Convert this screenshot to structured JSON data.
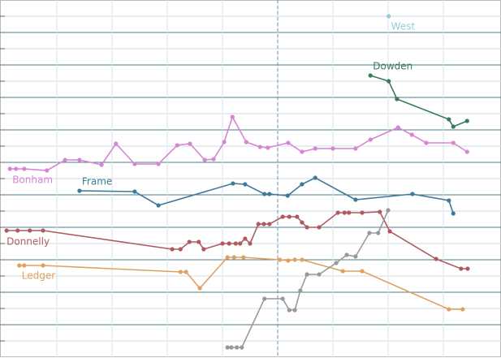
{
  "chart_data": {
    "type": "line",
    "xlim": [
      0,
      9
    ],
    "ylim": [
      0,
      22
    ],
    "xticks": [
      1,
      2,
      3,
      4,
      5,
      6,
      7,
      8
    ],
    "yticks": [
      1,
      2,
      3,
      4,
      5,
      6,
      7,
      8,
      9,
      10,
      11,
      12,
      13,
      14,
      15,
      16,
      17,
      18,
      19,
      20,
      21
    ],
    "grid": true,
    "vline": 5,
    "series": [
      {
        "name": "West",
        "color": "#8ecfd8",
        "x": [
          7.01
        ],
        "values": [
          21
        ]
      },
      {
        "name": "Dowden",
        "color": "#3a7a5a",
        "x": [
          6.68,
          7.01,
          7.16,
          8.1,
          8.18,
          8.43
        ],
        "values": [
          17.35,
          17.0,
          15.9,
          14.65,
          14.2,
          14.55
        ]
      },
      {
        "name": "Bonham",
        "color": "#d884d4",
        "x": [
          0.15,
          0.26,
          0.41,
          0.82,
          1.15,
          1.41,
          1.81,
          2.07,
          2.41,
          2.84,
          3.18,
          3.41,
          3.68,
          3.84,
          4.03,
          4.18,
          4.43,
          4.68,
          4.82,
          5.19,
          5.44,
          5.68,
          6.0,
          6.41,
          6.68,
          7.18,
          7.43,
          7.69,
          8.18,
          8.43
        ],
        "values": [
          11.6,
          11.6,
          11.6,
          11.5,
          12.15,
          12.15,
          11.85,
          13.15,
          11.9,
          11.9,
          13.05,
          13.15,
          12.15,
          12.2,
          13.25,
          14.8,
          13.25,
          12.95,
          12.9,
          13.2,
          12.65,
          12.85,
          12.85,
          12.85,
          13.4,
          14.15,
          13.7,
          13.2,
          13.2,
          12.65
        ]
      },
      {
        "name": "Frame",
        "color": "#3f7a99",
        "x": [
          1.41,
          2.41,
          2.84,
          4.19,
          4.41,
          4.76,
          4.85,
          5.18,
          5.44,
          5.68,
          6.41,
          7.44,
          8.1,
          8.18
        ],
        "values": [
          10.25,
          10.2,
          9.35,
          10.7,
          10.65,
          10.05,
          10.05,
          9.95,
          10.65,
          11.05,
          9.7,
          10.05,
          9.65,
          8.85
        ]
      },
      {
        "name": "Donnelly",
        "color": "#b05a60",
        "x": [
          0.09,
          0.29,
          0.51,
          0.75,
          3.09,
          3.24,
          3.4,
          3.57,
          3.66,
          4.0,
          4.12,
          4.24,
          4.32,
          4.41,
          4.5,
          4.65,
          4.75,
          4.85,
          5.09,
          5.21,
          5.35,
          5.44,
          5.53,
          5.75,
          6.09,
          6.21,
          6.29,
          6.53,
          6.85,
          7.03,
          7.87,
          8.32,
          8.44
        ],
        "values": [
          7.8,
          7.8,
          7.8,
          7.8,
          6.65,
          6.65,
          7.1,
          7.1,
          6.65,
          7.0,
          7.0,
          7.0,
          7.0,
          7.3,
          7.0,
          8.2,
          8.2,
          8.2,
          8.65,
          8.65,
          8.65,
          8.3,
          8.0,
          8.0,
          8.9,
          8.9,
          8.9,
          8.9,
          8.95,
          7.75,
          6.05,
          5.45,
          5.45
        ]
      },
      {
        "name": "Ledger",
        "color": "#e0a060",
        "x": [
          0.32,
          0.41,
          0.75,
          3.24,
          3.34,
          3.59,
          4.09,
          4.21,
          4.38,
          5.04,
          5.19,
          5.31,
          5.44,
          6.18,
          6.53,
          8.1,
          8.35
        ],
        "values": [
          5.65,
          5.65,
          5.65,
          5.25,
          5.25,
          4.25,
          6.15,
          6.15,
          6.15,
          6.0,
          5.95,
          6.0,
          6.0,
          5.3,
          5.3,
          2.95,
          2.95
        ]
      },
      {
        "color": "#999999",
        "x": [
          4.09,
          4.16,
          4.26,
          4.35,
          4.76,
          5.09,
          5.21,
          5.31,
          5.41,
          5.53,
          5.75,
          6.06,
          6.25,
          6.41,
          6.66,
          6.82,
          7.0
        ],
        "values": [
          0.6,
          0.6,
          0.6,
          0.6,
          3.6,
          3.6,
          2.9,
          2.9,
          4.1,
          5.1,
          5.1,
          5.8,
          6.3,
          6.2,
          7.65,
          7.65,
          9.05
        ]
      }
    ]
  }
}
